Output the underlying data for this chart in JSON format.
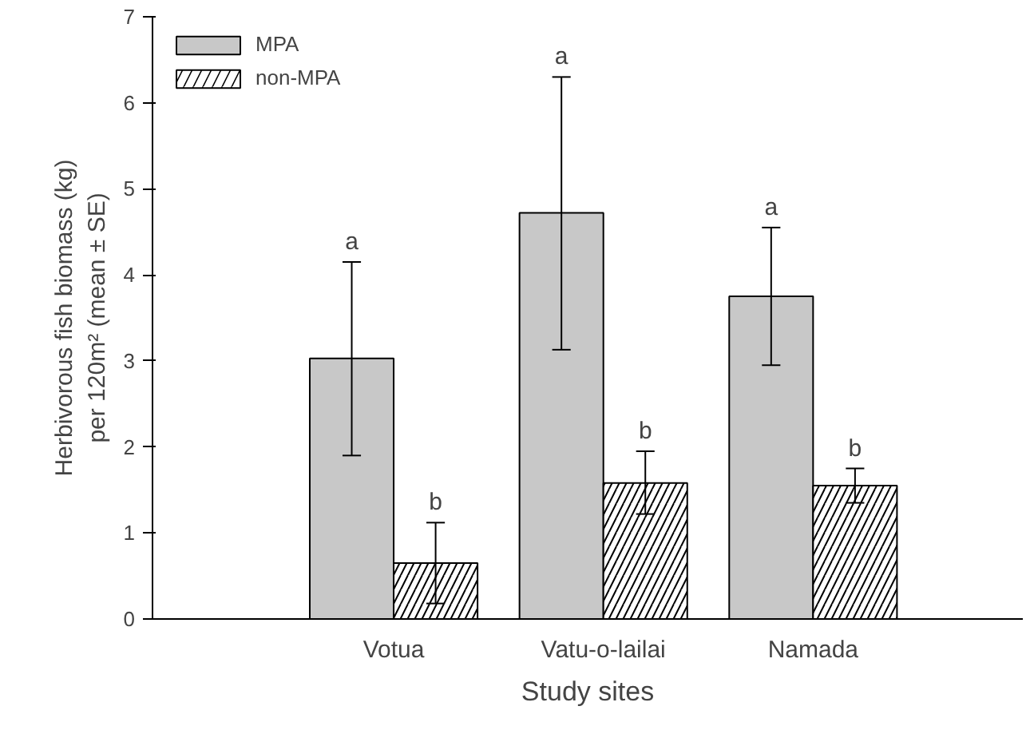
{
  "chart_data": {
    "type": "bar",
    "xlabel": "Study sites",
    "ylabel": "Herbivorous fish biomass (kg)\nper 120m² (mean ± SE)",
    "categories": [
      "Votua",
      "Vatu-o-lailai",
      "Namada"
    ],
    "series": [
      {
        "name": "MPA",
        "color": "#c8c8c8",
        "values": [
          3.03,
          4.72,
          3.75
        ],
        "errors": [
          [
            1.9,
            4.15
          ],
          [
            3.13,
            6.3
          ],
          [
            2.95,
            4.55
          ]
        ]
      },
      {
        "name": "non-MPA",
        "color": "#ffffff",
        "values": [
          0.65,
          1.58,
          1.55
        ],
        "errors": [
          [
            0.18,
            1.12
          ],
          [
            1.22,
            1.95
          ],
          [
            1.35,
            1.75
          ]
        ]
      }
    ],
    "ylim": [
      0,
      7
    ],
    "yticks": [
      0,
      1,
      2,
      3,
      4,
      5,
      6,
      7
    ],
    "grid": false,
    "legend": "top left",
    "annotations": [
      "a",
      "b",
      "a",
      "b",
      "a",
      "b"
    ]
  }
}
